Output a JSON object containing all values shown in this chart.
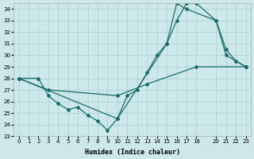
{
  "xlabel": "Humidex (Indice chaleur)",
  "bg_color": "#cce8e8",
  "grid_color": "#aacfcf",
  "line_color": "#1a6b6b",
  "xlim": [
    -0.5,
    23.5
  ],
  "ylim": [
    23,
    34.5
  ],
  "yticks": [
    23,
    24,
    25,
    26,
    27,
    28,
    29,
    30,
    31,
    32,
    33,
    34
  ],
  "xticks": [
    0,
    1,
    2,
    3,
    4,
    5,
    6,
    7,
    8,
    9,
    10,
    11,
    12,
    13,
    14,
    15,
    16,
    17,
    18,
    20,
    21,
    22,
    23
  ],
  "line1_x": [
    0,
    2,
    3,
    4,
    5,
    6,
    7,
    8,
    9,
    10,
    11,
    12,
    13,
    14,
    15,
    16,
    17,
    18,
    20,
    21,
    22,
    23
  ],
  "line1_y": [
    28,
    28,
    26.5,
    25.8,
    25.3,
    25.5,
    24.8,
    24.3,
    23.5,
    24.5,
    26.5,
    27.0,
    28.5,
    30.0,
    31.0,
    33.0,
    34.5,
    34.5,
    33.0,
    30.5,
    29.5,
    29.0
  ],
  "line2_x": [
    0,
    3,
    10,
    13,
    18,
    23
  ],
  "line2_y": [
    28,
    27.0,
    26.5,
    27.5,
    29.0,
    29.0
  ],
  "line3_x": [
    0,
    10,
    15,
    16,
    17,
    20,
    21,
    22,
    23
  ],
  "line3_y": [
    28,
    24.5,
    31.0,
    34.5,
    34.0,
    33.0,
    30.0,
    29.5,
    29.0
  ]
}
